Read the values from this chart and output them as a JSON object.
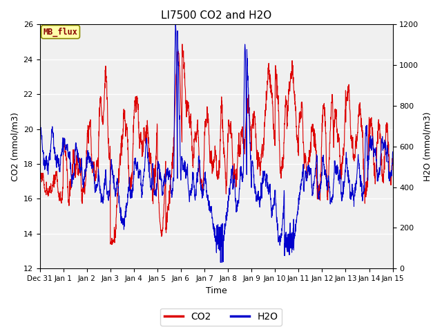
{
  "title": "LI7500 CO2 and H2O",
  "xlabel": "Time",
  "ylabel_left": "CO2 (mmol/m3)",
  "ylabel_right": "H2O (mmol/m3)",
  "ylim_left": [
    12,
    26
  ],
  "ylim_right": [
    0,
    1200
  ],
  "yticks_left": [
    12,
    14,
    16,
    18,
    20,
    22,
    24,
    26
  ],
  "yticks_right": [
    0,
    200,
    400,
    600,
    800,
    1000,
    1200
  ],
  "xtick_labels": [
    "Dec 31",
    "Jan 1",
    "Jan 2",
    "Jan 3",
    "Jan 4",
    "Jan 5",
    "Jan 6",
    "Jan 7",
    "Jan 8",
    "Jan 9",
    "Jan 10",
    "Jan 11",
    "Jan 12",
    "Jan 13",
    "Jan 14",
    "Jan 15"
  ],
  "co2_color": "#dd0000",
  "h2o_color": "#0000cc",
  "line_width": 0.8,
  "legend_label_co2": "CO2",
  "legend_label_h2o": "H2O",
  "annotation_text": "MB_flux",
  "annotation_bg": "#ffffaa",
  "annotation_border": "#888800",
  "annotation_text_color": "#880000",
  "plot_bg_color": "#f0f0f0",
  "fig_bg_color": "#ffffff",
  "grid_color": "#ffffff",
  "title_fontsize": 11,
  "tick_fontsize": 7.5
}
